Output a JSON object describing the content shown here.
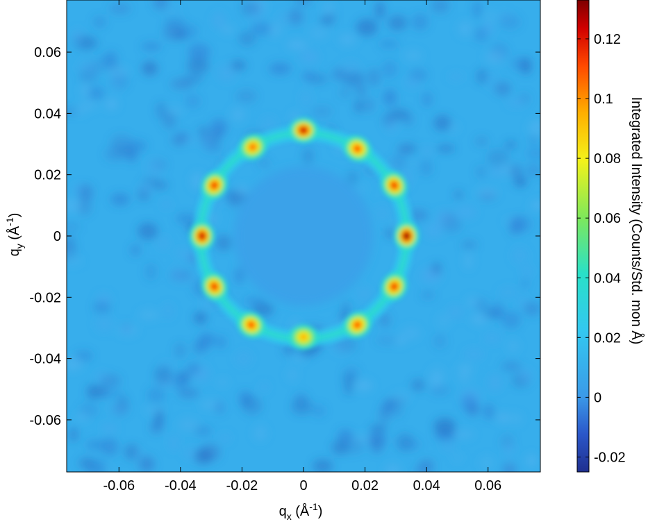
{
  "chart_data": {
    "type": "heatmap",
    "title": "",
    "xlabel": {
      "main": "q",
      "sub": "x",
      "unit_open": " (Å",
      "sup": "-1",
      "unit_close": ")"
    },
    "ylabel": {
      "main": "q",
      "sub": "y",
      "unit_open": " (Å",
      "sup": "-1",
      "unit_close": ")"
    },
    "xlim": [
      -0.077,
      0.077
    ],
    "ylim": [
      -0.077,
      0.077
    ],
    "x_ticks": [
      {
        "value": -0.06,
        "label": "-0.06"
      },
      {
        "value": -0.04,
        "label": "-0.04"
      },
      {
        "value": -0.02,
        "label": "-0.02"
      },
      {
        "value": 0,
        "label": "0"
      },
      {
        "value": 0.02,
        "label": "0.02"
      },
      {
        "value": 0.04,
        "label": "0.04"
      },
      {
        "value": 0.06,
        "label": "0.06"
      }
    ],
    "y_ticks": [
      {
        "value": 0.06,
        "label": "0.06"
      },
      {
        "value": 0.04,
        "label": "0.04"
      },
      {
        "value": 0.02,
        "label": "0.02"
      },
      {
        "value": 0,
        "label": "0"
      },
      {
        "value": -0.02,
        "label": "-0.02"
      },
      {
        "value": -0.04,
        "label": "-0.04"
      },
      {
        "value": -0.06,
        "label": "-0.06"
      }
    ],
    "colorbar": {
      "label": "Integrated Intensity (Counts/Std. mon Å)",
      "range": [
        -0.025,
        0.133
      ],
      "colormap": "jet",
      "ticks": [
        {
          "value": 0.12,
          "label": "0.12"
        },
        {
          "value": 0.1,
          "label": "0.1"
        },
        {
          "value": 0.08,
          "label": "0.08"
        },
        {
          "value": 0.06,
          "label": "0.06"
        },
        {
          "value": 0.04,
          "label": "0.04"
        },
        {
          "value": 0.02,
          "label": "0.02"
        },
        {
          "value": 0,
          "label": "0"
        },
        {
          "value": -0.02,
          "label": "-0.02"
        }
      ]
    },
    "background_intensity": 0.01,
    "ring": {
      "radius": 0.0335,
      "peak_intensity": 0.04
    },
    "bragg_peaks": [
      {
        "qx": 0.0335,
        "qy": 0.0,
        "intensity": 0.133
      },
      {
        "qx": 0.0295,
        "qy": 0.0165,
        "intensity": 0.115
      },
      {
        "qx": 0.0175,
        "qy": 0.0285,
        "intensity": 0.11
      },
      {
        "qx": 0.0,
        "qy": 0.0345,
        "intensity": 0.125
      },
      {
        "qx": -0.0165,
        "qy": 0.029,
        "intensity": 0.105
      },
      {
        "qx": -0.029,
        "qy": 0.0165,
        "intensity": 0.115
      },
      {
        "qx": -0.033,
        "qy": 0.0,
        "intensity": 0.125
      },
      {
        "qx": -0.029,
        "qy": -0.0165,
        "intensity": 0.115
      },
      {
        "qx": -0.017,
        "qy": -0.029,
        "intensity": 0.11
      },
      {
        "qx": 0.0,
        "qy": -0.033,
        "intensity": 0.095
      },
      {
        "qx": 0.0175,
        "qy": -0.029,
        "intensity": 0.11
      },
      {
        "qx": 0.0295,
        "qy": -0.0165,
        "intensity": 0.115
      }
    ],
    "colors": {
      "background": "#3b9ae8",
      "axis": "#000000"
    }
  }
}
